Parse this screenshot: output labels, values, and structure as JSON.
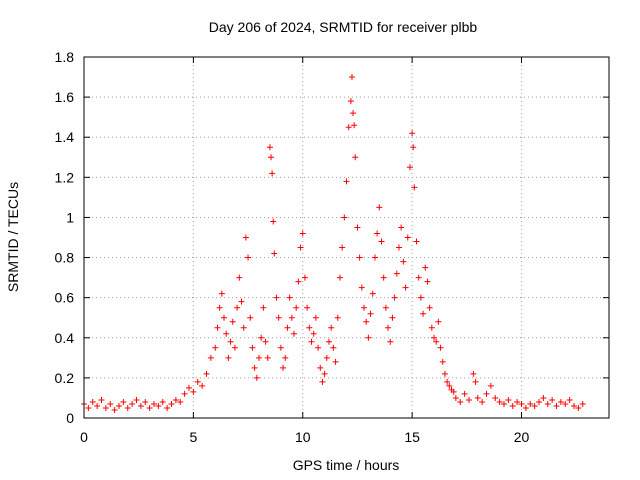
{
  "chart_data": {
    "type": "scatter",
    "title": "Day 206 of 2024, SRMTID for receiver plbb",
    "xlabel": "GPS time / hours",
    "ylabel": "SRMTID / TECUs",
    "xlim": [
      0,
      24
    ],
    "ylim": [
      0,
      1.8
    ],
    "xticks": [
      0,
      5,
      10,
      15,
      20
    ],
    "xtick_labels": [
      "0",
      "5",
      "10",
      "15",
      "20"
    ],
    "yticks": [
      0,
      0.2,
      0.4,
      0.6,
      0.8,
      1,
      1.2,
      1.4,
      1.6,
      1.8
    ],
    "ytick_labels": [
      "0",
      "0.2",
      "0.4",
      "0.6",
      "0.8",
      "1",
      "1.2",
      "1.4",
      "1.6",
      "1.8"
    ],
    "grid": true,
    "marker": "plus",
    "marker_color": "#ff0000",
    "series": [
      {
        "name": "SRMTID",
        "points": [
          [
            0.0,
            0.07
          ],
          [
            0.2,
            0.05
          ],
          [
            0.4,
            0.08
          ],
          [
            0.6,
            0.06
          ],
          [
            0.8,
            0.09
          ],
          [
            1.0,
            0.05
          ],
          [
            1.2,
            0.07
          ],
          [
            1.4,
            0.04
          ],
          [
            1.6,
            0.06
          ],
          [
            1.8,
            0.08
          ],
          [
            2.0,
            0.05
          ],
          [
            2.2,
            0.07
          ],
          [
            2.4,
            0.09
          ],
          [
            2.6,
            0.06
          ],
          [
            2.8,
            0.08
          ],
          [
            3.0,
            0.05
          ],
          [
            3.2,
            0.07
          ],
          [
            3.4,
            0.06
          ],
          [
            3.6,
            0.08
          ],
          [
            3.8,
            0.05
          ],
          [
            4.0,
            0.07
          ],
          [
            4.2,
            0.09
          ],
          [
            4.4,
            0.08
          ],
          [
            4.6,
            0.12
          ],
          [
            4.8,
            0.15
          ],
          [
            5.0,
            0.13
          ],
          [
            5.2,
            0.18
          ],
          [
            5.4,
            0.16
          ],
          [
            5.6,
            0.22
          ],
          [
            5.8,
            0.3
          ],
          [
            6.0,
            0.35
          ],
          [
            6.1,
            0.45
          ],
          [
            6.2,
            0.55
          ],
          [
            6.3,
            0.62
          ],
          [
            6.4,
            0.5
          ],
          [
            6.5,
            0.42
          ],
          [
            6.6,
            0.3
          ],
          [
            6.7,
            0.38
          ],
          [
            6.8,
            0.48
          ],
          [
            6.9,
            0.35
          ],
          [
            7.0,
            0.55
          ],
          [
            7.1,
            0.7
          ],
          [
            7.2,
            0.58
          ],
          [
            7.3,
            0.45
          ],
          [
            7.4,
            0.9
          ],
          [
            7.5,
            0.8
          ],
          [
            7.6,
            0.5
          ],
          [
            7.7,
            0.35
          ],
          [
            7.8,
            0.25
          ],
          [
            7.9,
            0.2
          ],
          [
            8.0,
            0.3
          ],
          [
            8.1,
            0.4
          ],
          [
            8.2,
            0.55
          ],
          [
            8.3,
            0.38
          ],
          [
            8.4,
            0.3
          ],
          [
            8.5,
            1.35
          ],
          [
            8.55,
            1.3
          ],
          [
            8.6,
            1.22
          ],
          [
            8.65,
            0.98
          ],
          [
            8.7,
            0.82
          ],
          [
            8.8,
            0.6
          ],
          [
            8.9,
            0.5
          ],
          [
            9.0,
            0.35
          ],
          [
            9.1,
            0.25
          ],
          [
            9.2,
            0.3
          ],
          [
            9.3,
            0.45
          ],
          [
            9.4,
            0.6
          ],
          [
            9.5,
            0.5
          ],
          [
            9.6,
            0.42
          ],
          [
            9.7,
            0.55
          ],
          [
            9.8,
            0.68
          ],
          [
            9.9,
            0.85
          ],
          [
            10.0,
            0.92
          ],
          [
            10.1,
            0.7
          ],
          [
            10.2,
            0.55
          ],
          [
            10.3,
            0.45
          ],
          [
            10.4,
            0.38
          ],
          [
            10.5,
            0.42
          ],
          [
            10.6,
            0.5
          ],
          [
            10.7,
            0.35
          ],
          [
            10.8,
            0.25
          ],
          [
            10.9,
            0.18
          ],
          [
            11.0,
            0.22
          ],
          [
            11.1,
            0.3
          ],
          [
            11.2,
            0.38
          ],
          [
            11.3,
            0.45
          ],
          [
            11.4,
            0.35
          ],
          [
            11.5,
            0.28
          ],
          [
            11.6,
            0.5
          ],
          [
            11.7,
            0.7
          ],
          [
            11.8,
            0.85
          ],
          [
            11.9,
            1.0
          ],
          [
            12.0,
            1.18
          ],
          [
            12.1,
            1.45
          ],
          [
            12.2,
            1.58
          ],
          [
            12.25,
            1.7
          ],
          [
            12.3,
            1.52
          ],
          [
            12.35,
            1.46
          ],
          [
            12.4,
            1.3
          ],
          [
            12.5,
            0.95
          ],
          [
            12.6,
            0.8
          ],
          [
            12.7,
            0.65
          ],
          [
            12.8,
            0.55
          ],
          [
            12.9,
            0.48
          ],
          [
            13.0,
            0.4
          ],
          [
            13.1,
            0.52
          ],
          [
            13.2,
            0.62
          ],
          [
            13.3,
            0.8
          ],
          [
            13.4,
            0.92
          ],
          [
            13.5,
            1.05
          ],
          [
            13.6,
            0.88
          ],
          [
            13.7,
            0.7
          ],
          [
            13.8,
            0.55
          ],
          [
            13.9,
            0.45
          ],
          [
            14.0,
            0.38
          ],
          [
            14.1,
            0.5
          ],
          [
            14.2,
            0.6
          ],
          [
            14.3,
            0.72
          ],
          [
            14.4,
            0.85
          ],
          [
            14.5,
            0.95
          ],
          [
            14.6,
            0.78
          ],
          [
            14.7,
            0.65
          ],
          [
            14.8,
            0.9
          ],
          [
            14.9,
            1.25
          ],
          [
            15.0,
            1.42
          ],
          [
            15.05,
            1.35
          ],
          [
            15.1,
            1.15
          ],
          [
            15.2,
            0.88
          ],
          [
            15.3,
            0.7
          ],
          [
            15.4,
            0.6
          ],
          [
            15.5,
            0.52
          ],
          [
            15.6,
            0.75
          ],
          [
            15.7,
            0.68
          ],
          [
            15.8,
            0.55
          ],
          [
            15.9,
            0.45
          ],
          [
            16.0,
            0.4
          ],
          [
            16.1,
            0.38
          ],
          [
            16.2,
            0.48
          ],
          [
            16.3,
            0.35
          ],
          [
            16.4,
            0.28
          ],
          [
            16.5,
            0.22
          ],
          [
            16.6,
            0.18
          ],
          [
            16.7,
            0.16
          ],
          [
            16.8,
            0.14
          ],
          [
            16.9,
            0.13
          ],
          [
            17.0,
            0.1
          ],
          [
            17.2,
            0.08
          ],
          [
            17.4,
            0.12
          ],
          [
            17.6,
            0.09
          ],
          [
            17.8,
            0.22
          ],
          [
            17.9,
            0.18
          ],
          [
            18.0,
            0.1
          ],
          [
            18.2,
            0.08
          ],
          [
            18.4,
            0.12
          ],
          [
            18.6,
            0.16
          ],
          [
            18.8,
            0.1
          ],
          [
            19.0,
            0.08
          ],
          [
            19.2,
            0.07
          ],
          [
            19.4,
            0.09
          ],
          [
            19.6,
            0.06
          ],
          [
            19.8,
            0.08
          ],
          [
            20.0,
            0.07
          ],
          [
            20.2,
            0.05
          ],
          [
            20.4,
            0.07
          ],
          [
            20.6,
            0.06
          ],
          [
            20.8,
            0.08
          ],
          [
            21.0,
            0.1
          ],
          [
            21.2,
            0.07
          ],
          [
            21.4,
            0.09
          ],
          [
            21.6,
            0.06
          ],
          [
            21.8,
            0.08
          ],
          [
            22.0,
            0.07
          ],
          [
            22.2,
            0.09
          ],
          [
            22.4,
            0.06
          ],
          [
            22.6,
            0.05
          ],
          [
            22.8,
            0.07
          ]
        ]
      }
    ]
  }
}
